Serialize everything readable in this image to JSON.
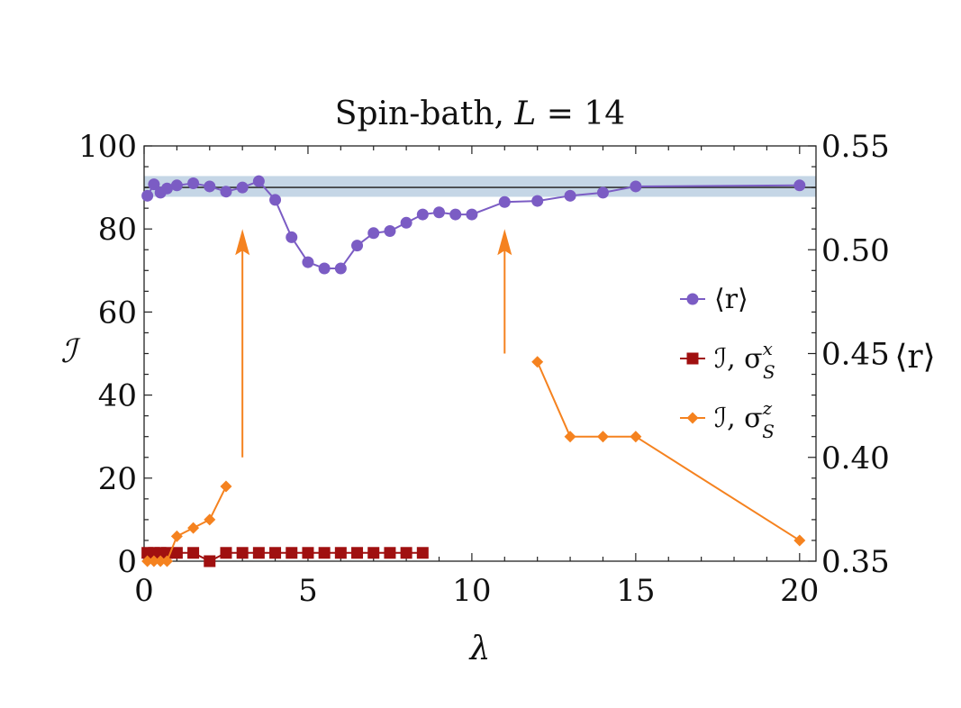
{
  "chart_data": {
    "type": "line",
    "title": "Spin-bath, L = 14",
    "title_parts": {
      "main": "Spin-bath,",
      "var": "L",
      "rest": " = 14"
    },
    "xlabel": "λ",
    "ylabel": "ℐ",
    "y2label": "⟨r⟩",
    "xlim": [
      0,
      20.5
    ],
    "ylim": [
      0,
      100
    ],
    "y2lim": [
      0.35,
      0.55
    ],
    "xticks": [
      0,
      5,
      10,
      15,
      20
    ],
    "yticks": [
      0,
      20,
      40,
      60,
      80,
      100
    ],
    "y2ticks": [
      "0.35",
      "0.40",
      "0.45",
      "0.50",
      "0.55"
    ],
    "reference_line": {
      "value": 0.53,
      "band": [
        0.5255,
        0.5355
      ],
      "band_color": "#c5d6e6",
      "line_color": "#333333"
    },
    "series": [
      {
        "name": "⟨r⟩",
        "axis": "right",
        "marker": "circle",
        "color": "#7b5cc4",
        "x": [
          0.1,
          0.3,
          0.5,
          0.7,
          1.0,
          1.5,
          2.0,
          2.5,
          3.0,
          3.5,
          4.0,
          4.5,
          5.0,
          5.5,
          6.0,
          6.5,
          7.0,
          7.5,
          8.0,
          8.5,
          9.0,
          9.5,
          10.0,
          11.0,
          12.0,
          13.0,
          14.0,
          15.0,
          20.0
        ],
        "y": [
          0.526,
          0.5315,
          0.5275,
          0.5295,
          0.531,
          0.532,
          0.5305,
          0.528,
          0.53,
          0.533,
          0.524,
          0.506,
          0.494,
          0.491,
          0.491,
          0.502,
          0.508,
          0.509,
          0.513,
          0.517,
          0.518,
          0.517,
          0.517,
          0.523,
          0.5235,
          0.526,
          0.5275,
          0.5305,
          0.531
        ]
      },
      {
        "name": "ℐ, σ_S^x",
        "axis": "left",
        "marker": "square",
        "color": "#a01010",
        "x": [
          0.1,
          0.3,
          0.5,
          0.7,
          1.0,
          1.5,
          2.0,
          2.5,
          3.0,
          3.5,
          4.0,
          4.5,
          5.0,
          5.5,
          6.0,
          6.5,
          7.0,
          7.5,
          8.0,
          8.5
        ],
        "y": [
          2,
          2,
          2,
          2,
          2,
          2,
          0,
          2,
          2,
          2,
          2,
          2,
          2,
          2,
          2,
          2,
          2,
          2,
          2,
          2
        ]
      },
      {
        "name": "ℐ, σ_S^z",
        "axis": "left",
        "marker": "diamond",
        "color": "#f5821f",
        "segments": [
          {
            "x": [
              0.1,
              0.3,
              0.5,
              0.7,
              1.0,
              1.5,
              2.0,
              2.5
            ],
            "y": [
              0,
              0,
              0,
              0,
              6,
              8,
              10,
              18
            ]
          },
          {
            "x": [
              12,
              13,
              14,
              15,
              20
            ],
            "y": [
              48,
              30,
              30,
              30,
              5
            ]
          }
        ]
      }
    ],
    "annotations": [
      {
        "type": "arrow",
        "color": "#f5821f",
        "x": 3.0,
        "y_from": 25,
        "y_to": 80
      },
      {
        "type": "arrow",
        "color": "#f5821f",
        "x": 11.0,
        "y_from": 50,
        "y_to": 80
      }
    ],
    "legend": {
      "placement": "right",
      "entries": [
        {
          "label": "⟨r⟩",
          "marker": "circle",
          "color": "#7b5cc4"
        },
        {
          "label": "ℐ, σ",
          "sup": "x",
          "sub": "S",
          "marker": "square",
          "color": "#a01010"
        },
        {
          "label": "ℐ, σ",
          "sup": "z",
          "sub": "S",
          "marker": "diamond",
          "color": "#f5821f"
        }
      ]
    }
  }
}
